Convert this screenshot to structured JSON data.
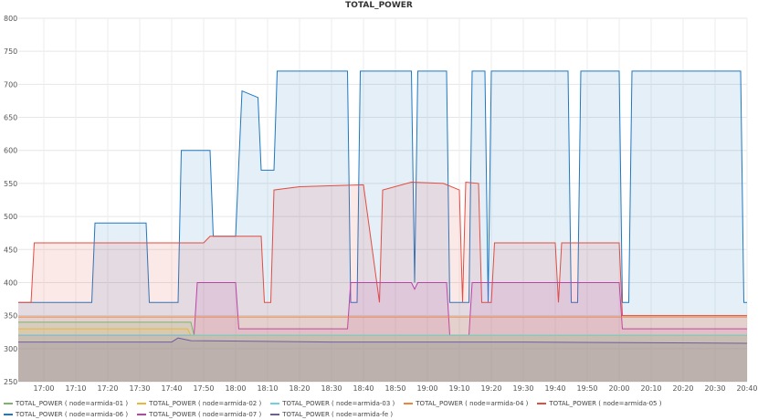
{
  "chart_data": {
    "type": "area",
    "title": "TOTAL_POWER",
    "xlabel": "",
    "ylabel": "",
    "ylim": [
      250,
      800
    ],
    "xlim": [
      "16:52",
      "20:40"
    ],
    "y_ticks": [
      250,
      300,
      350,
      400,
      450,
      500,
      550,
      600,
      650,
      700,
      750,
      800
    ],
    "x_ticks": [
      "17:00",
      "17:10",
      "17:20",
      "17:30",
      "17:40",
      "17:50",
      "18:00",
      "18:10",
      "18:20",
      "18:30",
      "18:40",
      "18:50",
      "19:00",
      "19:10",
      "19:20",
      "19:30",
      "19:40",
      "19:50",
      "20:00",
      "20:10",
      "20:20",
      "20:30",
      "20:40"
    ],
    "grid": true,
    "legend_position": "bottom",
    "series": [
      {
        "name": "TOTAL_POWER ( node=armida-01 )",
        "color": "#7eb26d",
        "points": [
          [
            "16:52",
            340
          ],
          [
            "17:46",
            340
          ],
          [
            "17:47",
            320
          ],
          [
            "20:40",
            320
          ]
        ]
      },
      {
        "name": "TOTAL_POWER ( node=armida-02 )",
        "color": "#eab839",
        "points": [
          [
            "16:52",
            330
          ],
          [
            "17:45",
            330
          ],
          [
            "17:46",
            320
          ],
          [
            "20:40",
            320
          ]
        ]
      },
      {
        "name": "TOTAL_POWER ( node=armida-03 )",
        "color": "#6ed0e0",
        "points": [
          [
            "16:52",
            320
          ],
          [
            "20:40",
            320
          ]
        ]
      },
      {
        "name": "TOTAL_POWER ( node=armida-04 )",
        "color": "#ef843c",
        "points": [
          [
            "16:52",
            348
          ],
          [
            "20:40",
            348
          ]
        ]
      },
      {
        "name": "TOTAL_POWER ( node=armida-05 )",
        "color": "#e24d42",
        "points": [
          [
            "16:52",
            370
          ],
          [
            "16:56",
            370
          ],
          [
            "16:57",
            460
          ],
          [
            "17:50",
            460
          ],
          [
            "17:52",
            470
          ],
          [
            "18:08",
            470
          ],
          [
            "18:09",
            370
          ],
          [
            "18:11",
            370
          ],
          [
            "18:12",
            540
          ],
          [
            "18:20",
            545
          ],
          [
            "18:40",
            548
          ],
          [
            "18:45",
            370
          ],
          [
            "18:46",
            540
          ],
          [
            "18:55",
            552
          ],
          [
            "19:05",
            550
          ],
          [
            "19:10",
            540
          ],
          [
            "19:11",
            370
          ],
          [
            "19:12",
            552
          ],
          [
            "19:16",
            550
          ],
          [
            "19:17",
            370
          ],
          [
            "19:20",
            370
          ],
          [
            "19:21",
            460
          ],
          [
            "19:40",
            460
          ],
          [
            "19:41",
            370
          ],
          [
            "19:42",
            460
          ],
          [
            "20:00",
            460
          ],
          [
            "20:01",
            350
          ],
          [
            "20:40",
            350
          ]
        ]
      },
      {
        "name": "TOTAL_POWER ( node=armida-06 )",
        "color": "#1f78c1",
        "points": [
          [
            "16:52",
            370
          ],
          [
            "17:15",
            370
          ],
          [
            "17:16",
            490
          ],
          [
            "17:32",
            490
          ],
          [
            "17:33",
            370
          ],
          [
            "17:42",
            370
          ],
          [
            "17:43",
            600
          ],
          [
            "17:52",
            600
          ],
          [
            "17:53",
            470
          ],
          [
            "18:00",
            470
          ],
          [
            "18:02",
            690
          ],
          [
            "18:07",
            680
          ],
          [
            "18:08",
            570
          ],
          [
            "18:12",
            570
          ],
          [
            "18:13",
            720
          ],
          [
            "18:35",
            720
          ],
          [
            "18:36",
            370
          ],
          [
            "18:38",
            370
          ],
          [
            "18:39",
            720
          ],
          [
            "18:55",
            720
          ],
          [
            "18:56",
            400
          ],
          [
            "18:57",
            720
          ],
          [
            "19:06",
            720
          ],
          [
            "19:07",
            370
          ],
          [
            "19:13",
            370
          ],
          [
            "19:14",
            720
          ],
          [
            "19:18",
            720
          ],
          [
            "19:19",
            370
          ],
          [
            "19:20",
            720
          ],
          [
            "19:44",
            720
          ],
          [
            "19:45",
            370
          ],
          [
            "19:47",
            370
          ],
          [
            "19:48",
            720
          ],
          [
            "20:00",
            720
          ],
          [
            "20:01",
            370
          ],
          [
            "20:03",
            370
          ],
          [
            "20:04",
            720
          ],
          [
            "20:38",
            720
          ],
          [
            "20:39",
            370
          ],
          [
            "20:40",
            370
          ]
        ]
      },
      {
        "name": "TOTAL_POWER ( node=armida-07 )",
        "color": "#ba43a9",
        "points": [
          [
            "16:52",
            320
          ],
          [
            "17:47",
            320
          ],
          [
            "17:48",
            400
          ],
          [
            "18:00",
            400
          ],
          [
            "18:01",
            330
          ],
          [
            "18:35",
            330
          ],
          [
            "18:36",
            400
          ],
          [
            "18:55",
            400
          ],
          [
            "18:56",
            390
          ],
          [
            "18:57",
            400
          ],
          [
            "19:06",
            400
          ],
          [
            "19:07",
            320
          ],
          [
            "19:13",
            320
          ],
          [
            "19:14",
            400
          ],
          [
            "20:00",
            400
          ],
          [
            "20:01",
            330
          ],
          [
            "20:38",
            330
          ],
          [
            "20:40",
            330
          ]
        ]
      },
      {
        "name": "TOTAL_POWER ( node=armida-fe )",
        "color": "#705da0",
        "points": [
          [
            "16:52",
            310
          ],
          [
            "17:40",
            310
          ],
          [
            "17:42",
            316
          ],
          [
            "17:46",
            312
          ],
          [
            "18:30",
            310
          ],
          [
            "19:30",
            310
          ],
          [
            "20:40",
            308
          ]
        ]
      }
    ]
  }
}
